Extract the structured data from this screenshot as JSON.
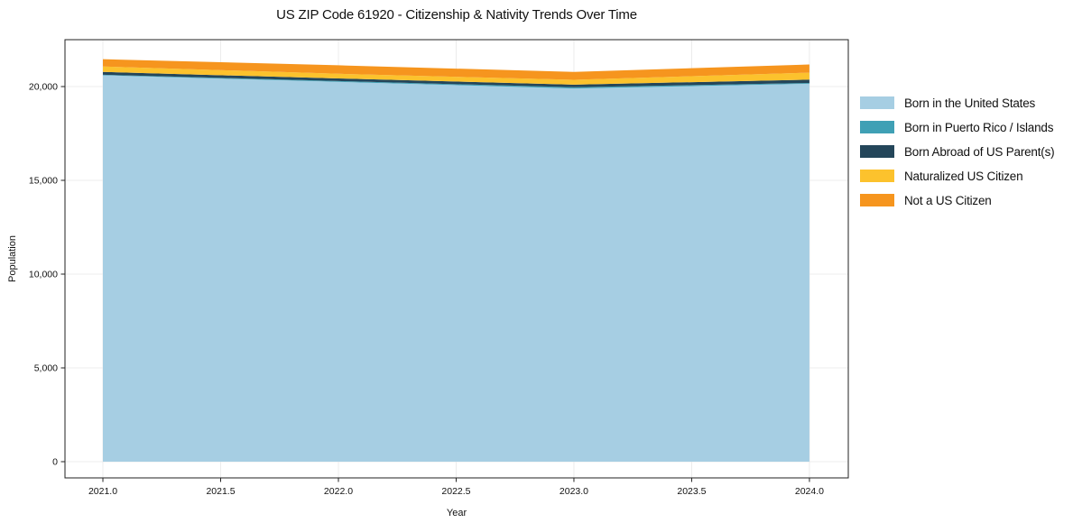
{
  "chart_data": {
    "type": "area",
    "stacked": true,
    "title": "US ZIP Code 61920 - Citizenship & Nativity Trends Over Time",
    "xlabel": "Year",
    "ylabel": "Population",
    "x": [
      2021,
      2022,
      2023,
      2024
    ],
    "series": [
      {
        "name": "Born in the United States",
        "color": "#A6CEE3",
        "values": [
          20600,
          20250,
          19900,
          20150
        ]
      },
      {
        "name": "Born in Puerto Rico / Islands",
        "color": "#3FA0B5",
        "values": [
          30,
          45,
          60,
          40
        ]
      },
      {
        "name": "Born Abroad of US Parent(s)",
        "color": "#24465A",
        "values": [
          150,
          140,
          140,
          180
        ]
      },
      {
        "name": "Naturalized US Citizen",
        "color": "#FCC22D",
        "values": [
          290,
          250,
          260,
          370
        ]
      },
      {
        "name": "Not a US Citizen",
        "color": "#F6951E",
        "values": [
          390,
          450,
          420,
          440
        ]
      }
    ],
    "x_ticks": {
      "values": [
        2021.0,
        2021.5,
        2022.0,
        2022.5,
        2023.0,
        2023.5,
        2024.0
      ],
      "labels": [
        "2021.0",
        "2021.5",
        "2022.0",
        "2022.5",
        "2023.0",
        "2023.5",
        "2024.0"
      ]
    },
    "y_ticks": {
      "values": [
        0,
        5000,
        10000,
        15000,
        20000
      ],
      "labels": [
        "0",
        "5,000",
        "10,000",
        "15,000",
        "20,000"
      ]
    },
    "xlim": [
      2020.839,
      2024.165
    ],
    "ylim": [
      -865,
      22500
    ],
    "grid": true,
    "legend_position": "right"
  },
  "colors": {
    "background": "#ffffff",
    "grid": "#ececec",
    "spine": "#222222",
    "tick": "#222222",
    "text": "#111111"
  }
}
